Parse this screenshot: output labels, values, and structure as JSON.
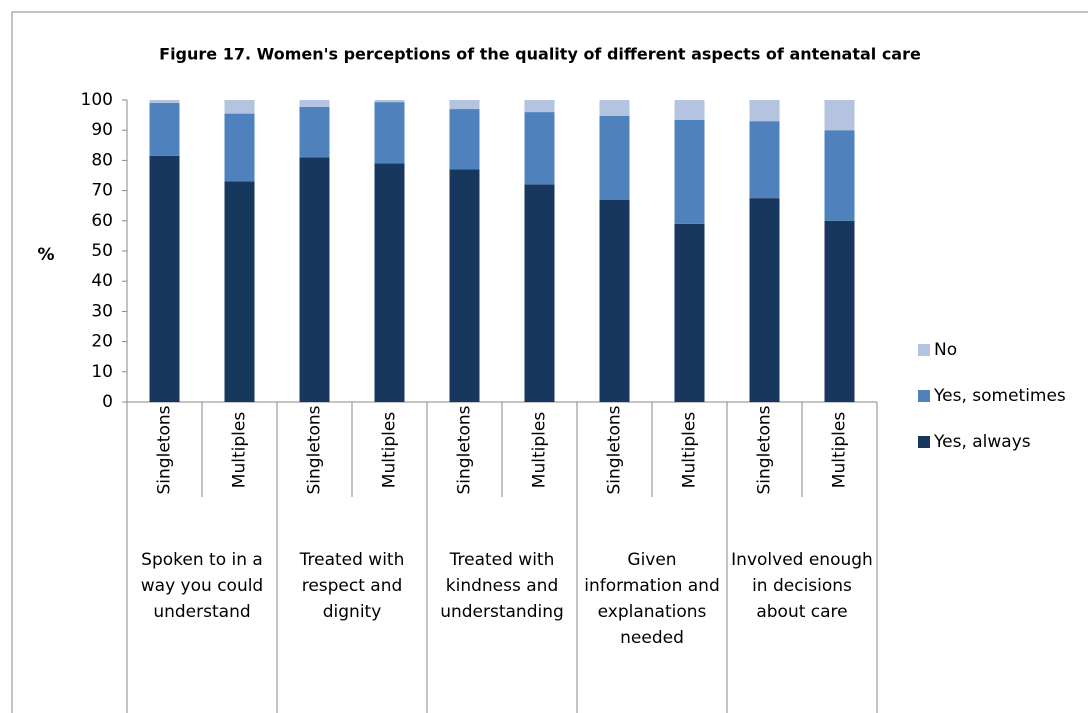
{
  "chart_data": {
    "type": "stacked_bar",
    "title": "Figure 17. Women's perceptions of  the quality of different aspects of antenatal care",
    "y_label": "%",
    "categories": [
      "Singletons",
      "Multiples",
      "Singletons",
      "Multiples",
      "Singletons",
      "Multiples",
      "Singletons",
      "Multiples",
      "Singletons",
      "Multiples"
    ],
    "groups": [
      "Spoken to in a way you could understand",
      "Treated with respect and dignity",
      "Treated with kindness and understanding",
      "Given information and explanations needed",
      "Involved enough in decisions about care"
    ],
    "series": [
      {
        "name": "Yes, always",
        "color": "#17375e",
        "values": [
          81.5,
          73,
          81,
          79,
          77,
          72,
          67,
          59,
          67.5,
          60
        ]
      },
      {
        "name": "Yes, sometimes",
        "color": "#4f81bd",
        "values": [
          17.5,
          22.5,
          16.7,
          20.3,
          20,
          24,
          27.7,
          34.4,
          25.5,
          30
        ]
      },
      {
        "name": "No",
        "color": "#b3c3e0",
        "values": [
          1,
          4.5,
          2.3,
          0.7,
          3,
          4,
          5.3,
          6.6,
          7,
          10
        ]
      }
    ],
    "ylim": [
      0,
      100
    ],
    "yticks": [
      0,
      10,
      20,
      30,
      40,
      50,
      60,
      70,
      80,
      90,
      100
    ],
    "grid": false,
    "legend": "right"
  }
}
